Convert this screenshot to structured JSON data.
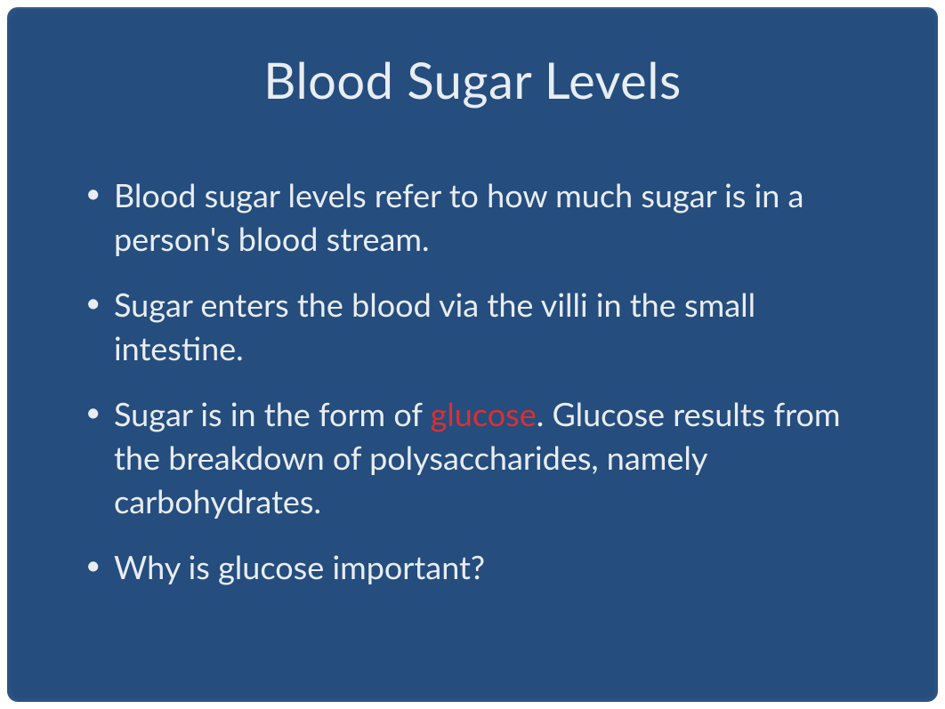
{
  "slide": {
    "title": "Blood Sugar Levels",
    "background_color": "#254d7e",
    "text_color": "#e8edf2",
    "highlight_color": "#de2f2f",
    "title_fontsize": 56,
    "body_fontsize": 36,
    "bullets": [
      {
        "text_before": "Blood sugar levels refer to how much sugar is in a person's blood stream.",
        "highlight": "",
        "text_after": ""
      },
      {
        "text_before": "Sugar enters the blood via the villi in the small intestine.",
        "highlight": "",
        "text_after": ""
      },
      {
        "text_before": "Sugar is in the form of ",
        "highlight": "glucose",
        "text_after": ". Glucose results from the breakdown of polysaccharides, namely carbohydrates."
      },
      {
        "text_before": "Why is glucose important?",
        "highlight": "",
        "text_after": ""
      }
    ]
  }
}
